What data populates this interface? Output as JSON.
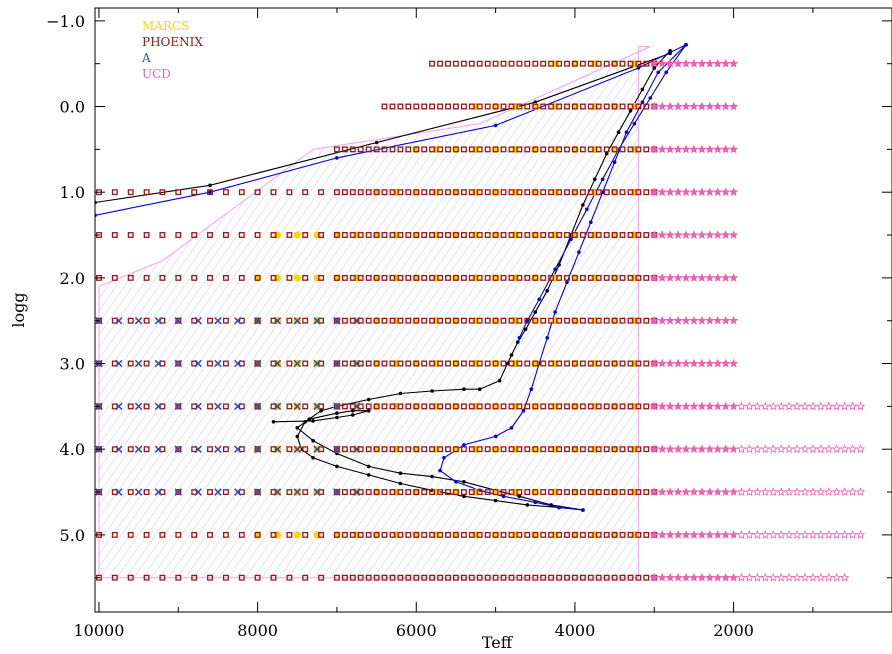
{
  "chart_data": {
    "type": "scatter",
    "xlabel": "Teff",
    "ylabel": "logg",
    "xlim": [
      10050,
      3
    ],
    "ylim": [
      -1.15,
      5.9
    ],
    "x_reversed": true,
    "y_reversed": true,
    "x_ticks": [
      "10000",
      "8000",
      "6000",
      "4000",
      "2000"
    ],
    "x_tick_values": [
      10000,
      8000,
      6000,
      4000,
      2000
    ],
    "y_ticks": [
      "−1.0",
      "0.0",
      "1.0",
      "2.0",
      "3.0",
      "4.0",
      "5.0"
    ],
    "y_tick_values": [
      -1,
      0,
      1,
      2,
      3,
      4,
      5
    ],
    "legend": {
      "placement": "top-left",
      "entries": [
        {
          "name": "MARCS",
          "color": "#FFD400"
        },
        {
          "name": "PHOENIX",
          "color": "#A01414"
        },
        {
          "name": "A",
          "color": "#3A4CB0"
        },
        {
          "name": "UCD",
          "color": "#F060B0"
        }
      ]
    },
    "grids": {
      "phoenix": {
        "color": "#A01414",
        "rows": [
          {
            "logg": -0.5,
            "teff_min": 3000,
            "teff_max": 5800
          },
          {
            "logg": 0.0,
            "teff_min": 3000,
            "teff_max": 6400
          },
          {
            "logg": 0.5,
            "teff_min": 3000,
            "teff_max": 7000
          },
          {
            "logg": 1.0,
            "teff_min": 3000,
            "teff_max": 10000
          },
          {
            "logg": 1.5,
            "teff_min": 3000,
            "teff_max": 10000
          },
          {
            "logg": 2.0,
            "teff_min": 3000,
            "teff_max": 10000
          },
          {
            "logg": 2.5,
            "teff_min": 3000,
            "teff_max": 10000
          },
          {
            "logg": 3.0,
            "teff_min": 3000,
            "teff_max": 10000
          },
          {
            "logg": 3.5,
            "teff_min": 3000,
            "teff_max": 10000
          },
          {
            "logg": 4.0,
            "teff_min": 3000,
            "teff_max": 10000
          },
          {
            "logg": 4.5,
            "teff_min": 3000,
            "teff_max": 10000
          },
          {
            "logg": 5.0,
            "teff_min": 3000,
            "teff_max": 10000
          },
          {
            "logg": 5.5,
            "teff_min": 3000,
            "teff_max": 10000
          }
        ],
        "step_hot": 200,
        "step_cool": 100,
        "step_break": 7000
      },
      "marcs": {
        "color": "#FFD400",
        "rows": [
          {
            "logg": -0.5,
            "teff": [
              4250,
              4000,
              3750,
              3500,
              3250
            ]
          },
          {
            "logg": 0.0,
            "teff": [
              5250,
              5000,
              4750,
              4500,
              4250,
              4000,
              3750,
              3500,
              3250
            ]
          },
          {
            "logg": 0.5,
            "teff": [
              6000,
              5750,
              5500,
              5250,
              5000,
              4750,
              4500,
              4250,
              4000,
              3750,
              3500,
              3250
            ]
          },
          {
            "logg": 1.0,
            "teff": [
              6500,
              6250,
              6000,
              5750,
              5500,
              5250,
              5000,
              4750,
              4500,
              4250,
              4000,
              3750,
              3500,
              3250
            ]
          },
          {
            "logg": 1.5,
            "teff": [
              7750,
              7500,
              7250,
              7000,
              6750,
              6500,
              6250,
              6000,
              5750,
              5500,
              5250,
              5000,
              4750,
              4500,
              4250,
              4000,
              3750,
              3500,
              3250
            ]
          },
          {
            "logg": 2.0,
            "teff": [
              8000,
              7750,
              7500,
              7250,
              7000,
              6750,
              6500,
              6250,
              6000,
              5750,
              5500,
              5250,
              5000,
              4750,
              4500,
              4250,
              4000,
              3750,
              3500,
              3250
            ]
          },
          {
            "logg": 2.5,
            "teff": [
              8000,
              7750,
              7500,
              7250,
              7000,
              6750,
              6500,
              6250,
              6000,
              5750,
              5500,
              5250,
              5000,
              4750,
              4500,
              4250,
              4000,
              3750,
              3500,
              3250
            ]
          },
          {
            "logg": 3.0,
            "teff": [
              8000,
              7750,
              7500,
              7250,
              7000,
              6750,
              6500,
              6250,
              6000,
              5750,
              5500,
              5250,
              5000,
              4750,
              4500,
              4250,
              4000,
              3750,
              3500,
              3250
            ]
          },
          {
            "logg": 3.5,
            "teff": [
              8000,
              7750,
              7500,
              7250,
              7000,
              6750,
              6500,
              6250,
              6000,
              5750,
              5500,
              5250,
              5000,
              4750,
              4500,
              4250,
              4000,
              3750,
              3500,
              3250
            ]
          },
          {
            "logg": 4.0,
            "teff": [
              8000,
              7750,
              7500,
              7250,
              7000,
              6750,
              6500,
              6250,
              6000,
              5750,
              5500,
              5250,
              5000,
              4750,
              4500,
              4250,
              4000,
              3750,
              3500,
              3250
            ]
          },
          {
            "logg": 4.5,
            "teff": [
              8000,
              7750,
              7500,
              7250,
              7000,
              6750,
              6500,
              6250,
              6000,
              5750,
              5500,
              5250,
              5000,
              4750,
              4500,
              4250,
              4000,
              3750,
              3500,
              3250
            ]
          },
          {
            "logg": 5.0,
            "teff": [
              8000,
              7750,
              7500,
              7250,
              7000,
              6750,
              6500,
              6250,
              6000,
              5750,
              5500,
              5250,
              5000,
              4750,
              4500,
              4250,
              4000,
              3750,
              3500,
              3250
            ]
          }
        ]
      },
      "a_models": {
        "color": "#3A4CB0",
        "rows": [
          {
            "logg": 2.5,
            "teff_min": 6750,
            "teff_max": 10000,
            "step": 250
          },
          {
            "logg": 3.0,
            "teff_min": 6750,
            "teff_max": 10000,
            "step": 250
          },
          {
            "logg": 3.5,
            "teff_min": 6750,
            "teff_max": 10000,
            "step": 250
          },
          {
            "logg": 4.0,
            "teff_min": 6750,
            "teff_max": 10000,
            "step": 250
          },
          {
            "logg": 4.5,
            "teff_min": 6750,
            "teff_max": 10000,
            "step": 250
          }
        ]
      },
      "ucd": {
        "color": "#F060B0",
        "rows": [
          {
            "logg": -0.5,
            "teff_min": 2000,
            "teff_max": 3000,
            "step": 100
          },
          {
            "logg": 0.0,
            "teff_min": 2000,
            "teff_max": 3000,
            "step": 100
          },
          {
            "logg": 0.5,
            "teff_min": 2000,
            "teff_max": 3000,
            "step": 100
          },
          {
            "logg": 1.0,
            "teff_min": 2000,
            "teff_max": 3000,
            "step": 100
          },
          {
            "logg": 1.5,
            "teff_min": 2000,
            "teff_max": 3000,
            "step": 100
          },
          {
            "logg": 2.0,
            "teff_min": 2000,
            "teff_max": 3000,
            "step": 100
          },
          {
            "logg": 2.5,
            "teff_min": 2000,
            "teff_max": 3000,
            "step": 100
          },
          {
            "logg": 3.0,
            "teff_min": 2000,
            "teff_max": 3000,
            "step": 100
          },
          {
            "logg": 3.5,
            "teff_min": 400,
            "teff_max": 3000,
            "step": 100
          },
          {
            "logg": 4.0,
            "teff_min": 400,
            "teff_max": 3000,
            "step": 100
          },
          {
            "logg": 4.5,
            "teff_min": 400,
            "teff_max": 3000,
            "step": 100
          },
          {
            "logg": 5.0,
            "teff_min": 400,
            "teff_max": 3000,
            "step": 100
          },
          {
            "logg": 5.5,
            "teff_min": 600,
            "teff_max": 3000,
            "step": 100
          }
        ]
      }
    },
    "region": {
      "color": "#C8C8EE",
      "outline_color": "#F4A0E8",
      "points": [
        [
          10000,
          2.1
        ],
        [
          10000,
          5.5
        ],
        [
          3350,
          5.5
        ],
        [
          3200,
          5.5
        ],
        [
          3200,
          -0.7
        ],
        [
          3050,
          -0.7
        ],
        [
          5200,
          0.2
        ],
        [
          7300,
          0.5
        ],
        [
          8100,
          1.05
        ],
        [
          9200,
          1.8
        ],
        [
          10000,
          2.1
        ]
      ]
    },
    "tracks": [
      {
        "color": "#000000",
        "points": [
          [
            2800,
            -0.65
          ],
          [
            3000,
            -0.45
          ],
          [
            3150,
            -0.2
          ],
          [
            3300,
            0.05
          ],
          [
            3450,
            0.3
          ],
          [
            3600,
            0.55
          ],
          [
            3750,
            0.85
          ],
          [
            3900,
            1.15
          ],
          [
            4050,
            1.5
          ],
          [
            4200,
            1.85
          ],
          [
            4350,
            2.15
          ],
          [
            4500,
            2.4
          ],
          [
            4620,
            2.6
          ],
          [
            4720,
            2.75
          ],
          [
            4800,
            2.9
          ],
          [
            4850,
            3.0
          ],
          [
            4950,
            3.2
          ],
          [
            5200,
            3.3
          ],
          [
            5400,
            3.3
          ],
          [
            5800,
            3.32
          ],
          [
            6200,
            3.35
          ],
          [
            6600,
            3.42
          ],
          [
            7000,
            3.5
          ],
          [
            7200,
            3.55
          ],
          [
            7400,
            3.68
          ],
          [
            7500,
            3.85
          ],
          [
            7450,
            4.0
          ],
          [
            7300,
            4.1
          ],
          [
            7000,
            4.2
          ],
          [
            6600,
            4.3
          ],
          [
            6200,
            4.4
          ],
          [
            5800,
            4.48
          ],
          [
            5400,
            4.55
          ],
          [
            5000,
            4.6
          ],
          [
            4600,
            4.65
          ],
          [
            4200,
            4.68
          ],
          [
            3900,
            4.71
          ]
        ]
      },
      {
        "color": "#000000",
        "points": [
          [
            3900,
            4.71
          ],
          [
            4300,
            4.65
          ],
          [
            4700,
            4.55
          ],
          [
            5000,
            4.48
          ],
          [
            5400,
            4.38
          ],
          [
            5800,
            4.32
          ],
          [
            6200,
            4.28
          ],
          [
            6600,
            4.2
          ],
          [
            7000,
            4.05
          ],
          [
            7300,
            3.9
          ],
          [
            7500,
            3.75
          ],
          [
            7350,
            3.65
          ],
          [
            7000,
            3.58
          ],
          [
            6800,
            3.55
          ],
          [
            6600,
            3.55
          ],
          [
            6800,
            3.6
          ],
          [
            7000,
            3.63
          ],
          [
            7300,
            3.67
          ],
          [
            7800,
            3.68
          ]
        ]
      },
      {
        "color": "#0000E0",
        "points": [
          [
            3900,
            4.71
          ],
          [
            4200,
            4.68
          ],
          [
            4500,
            4.62
          ],
          [
            4900,
            4.55
          ],
          [
            5200,
            4.48
          ],
          [
            5500,
            4.38
          ],
          [
            5700,
            4.25
          ],
          [
            5650,
            4.1
          ],
          [
            5400,
            3.95
          ],
          [
            5000,
            3.85
          ],
          [
            4800,
            3.75
          ],
          [
            4650,
            3.55
          ],
          [
            4550,
            3.3
          ],
          [
            4450,
            3.0
          ],
          [
            4350,
            2.7
          ],
          [
            4250,
            2.4
          ],
          [
            4100,
            2.05
          ],
          [
            3950,
            1.7
          ],
          [
            3800,
            1.35
          ],
          [
            3650,
            1.0
          ],
          [
            3500,
            0.65
          ],
          [
            3350,
            0.3
          ],
          [
            3150,
            -0.05
          ],
          [
            2950,
            -0.4
          ],
          [
            2600,
            -0.72
          ]
        ]
      },
      {
        "color": "#0000E0",
        "points": [
          [
            2600,
            -0.72
          ],
          [
            2850,
            -0.4
          ],
          [
            3050,
            -0.1
          ],
          [
            3250,
            0.2
          ],
          [
            3450,
            0.5
          ],
          [
            3650,
            0.85
          ],
          [
            3850,
            1.2
          ],
          [
            4050,
            1.55
          ],
          [
            4250,
            1.9
          ],
          [
            4450,
            2.25
          ],
          [
            4600,
            2.5
          ],
          [
            4700,
            2.7
          ]
        ]
      },
      {
        "color": "#000000",
        "points": [
          [
            10050,
            1.12
          ],
          [
            8600,
            0.92
          ],
          [
            6500,
            0.42
          ],
          [
            4500,
            -0.05
          ],
          [
            2800,
            -0.62
          ]
        ]
      },
      {
        "color": "#0000E0",
        "points": [
          [
            10050,
            1.27
          ],
          [
            8600,
            1.0
          ],
          [
            7000,
            0.6
          ],
          [
            5000,
            0.22
          ],
          [
            3200,
            -0.45
          ],
          [
            2600,
            -0.72
          ]
        ]
      }
    ]
  }
}
